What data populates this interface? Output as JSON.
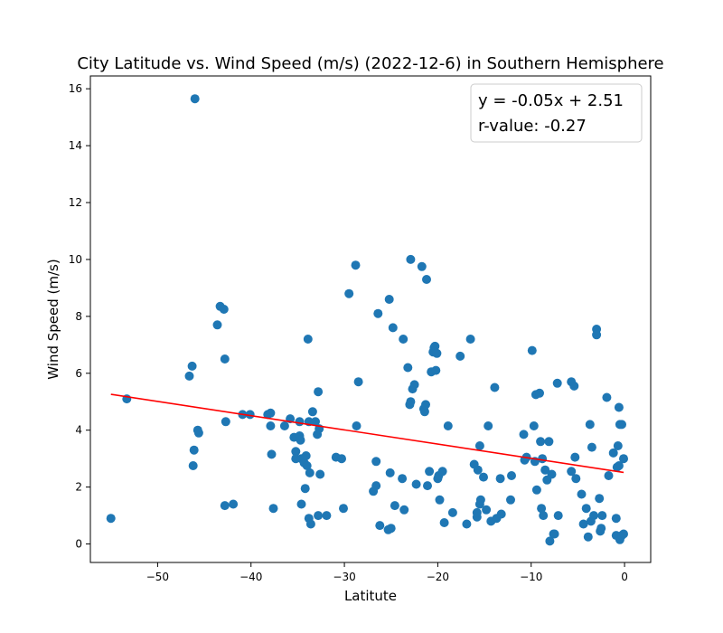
{
  "chart_data": {
    "type": "scatter",
    "title": "City Latitude vs. Wind Speed (m/s) (2022-12-6) in Southern Hemisphere",
    "xlabel": "Latitute",
    "ylabel": "Wind Speed (m/s)",
    "xlim": [
      -57.2,
      2.8
    ],
    "ylim": [
      -0.65,
      16.45
    ],
    "xticks": [
      -50,
      -40,
      -30,
      -20,
      -10,
      0
    ],
    "yticks": [
      0,
      2,
      4,
      6,
      8,
      10,
      12,
      14,
      16
    ],
    "grid": false,
    "point_color": "#1f77b4",
    "regression": {
      "slope": -0.05,
      "intercept": 2.51,
      "x_range": [
        -55.0,
        -0.1
      ],
      "color": "#ff0000",
      "equation_text": "y = -0.05x + 2.51",
      "r_text": "r-value: -0.27"
    },
    "points": [
      [
        -55.0,
        0.9
      ],
      [
        -53.3,
        5.1
      ],
      [
        -46.0,
        15.65
      ],
      [
        -46.6,
        5.9
      ],
      [
        -46.3,
        6.25
      ],
      [
        -46.1,
        3.3
      ],
      [
        -46.2,
        2.75
      ],
      [
        -45.7,
        4.0
      ],
      [
        -45.6,
        3.9
      ],
      [
        -43.6,
        7.7
      ],
      [
        -43.3,
        8.35
      ],
      [
        -42.9,
        8.25
      ],
      [
        -42.8,
        6.5
      ],
      [
        -42.7,
        4.3
      ],
      [
        -42.8,
        1.35
      ],
      [
        -41.9,
        1.4
      ],
      [
        -40.9,
        4.55
      ],
      [
        -40.1,
        4.55
      ],
      [
        -38.2,
        4.55
      ],
      [
        -37.9,
        4.6
      ],
      [
        -37.9,
        4.15
      ],
      [
        -37.8,
        3.15
      ],
      [
        -37.6,
        1.25
      ],
      [
        -36.4,
        4.15
      ],
      [
        -35.8,
        4.4
      ],
      [
        -35.4,
        3.75
      ],
      [
        -35.2,
        3.25
      ],
      [
        -35.2,
        3.0
      ],
      [
        -34.8,
        4.3
      ],
      [
        -34.8,
        3.8
      ],
      [
        -34.7,
        3.65
      ],
      [
        -34.6,
        3.0
      ],
      [
        -34.6,
        1.4
      ],
      [
        -34.3,
        2.85
      ],
      [
        -34.2,
        1.95
      ],
      [
        -34.1,
        3.1
      ],
      [
        -34.0,
        2.75
      ],
      [
        -33.9,
        7.2
      ],
      [
        -33.8,
        4.3
      ],
      [
        -33.7,
        2.5
      ],
      [
        -33.8,
        0.9
      ],
      [
        -33.6,
        0.7
      ],
      [
        -33.4,
        4.65
      ],
      [
        -33.1,
        4.3
      ],
      [
        -32.9,
        3.85
      ],
      [
        -32.8,
        5.35
      ],
      [
        -32.6,
        2.45
      ],
      [
        -32.8,
        1.0
      ],
      [
        -32.7,
        4.05
      ],
      [
        -31.9,
        1.0
      ],
      [
        -30.9,
        3.05
      ],
      [
        -30.3,
        3.0
      ],
      [
        -30.1,
        1.25
      ],
      [
        -29.5,
        8.8
      ],
      [
        -28.8,
        9.8
      ],
      [
        -28.7,
        4.15
      ],
      [
        -28.5,
        5.7
      ],
      [
        -26.9,
        1.85
      ],
      [
        -26.6,
        2.05
      ],
      [
        -26.6,
        2.9
      ],
      [
        -26.4,
        8.1
      ],
      [
        -26.2,
        0.65
      ],
      [
        -25.3,
        0.5
      ],
      [
        -25.0,
        0.55
      ],
      [
        -25.2,
        8.6
      ],
      [
        -25.1,
        2.5
      ],
      [
        -24.8,
        7.6
      ],
      [
        -24.6,
        1.35
      ],
      [
        -23.8,
        2.3
      ],
      [
        -23.7,
        7.2
      ],
      [
        -23.6,
        1.2
      ],
      [
        -23.2,
        6.2
      ],
      [
        -23.0,
        4.9
      ],
      [
        -22.9,
        5.0
      ],
      [
        -22.9,
        10.0
      ],
      [
        -22.7,
        5.45
      ],
      [
        -22.5,
        5.6
      ],
      [
        -22.3,
        2.1
      ],
      [
        -21.7,
        9.75
      ],
      [
        -21.5,
        4.75
      ],
      [
        -21.4,
        4.65
      ],
      [
        -21.3,
        4.9
      ],
      [
        -21.2,
        9.3
      ],
      [
        -21.1,
        2.05
      ],
      [
        -20.9,
        2.55
      ],
      [
        -20.7,
        6.05
      ],
      [
        -20.5,
        6.75
      ],
      [
        -20.4,
        6.9
      ],
      [
        -20.3,
        6.95
      ],
      [
        -20.2,
        6.1
      ],
      [
        -20.1,
        6.7
      ],
      [
        -20.0,
        2.3
      ],
      [
        -19.9,
        2.4
      ],
      [
        -19.8,
        1.55
      ],
      [
        -19.5,
        2.55
      ],
      [
        -19.3,
        0.75
      ],
      [
        -18.9,
        4.15
      ],
      [
        -18.4,
        1.1
      ],
      [
        -17.6,
        6.6
      ],
      [
        -16.9,
        0.7
      ],
      [
        -16.5,
        7.2
      ],
      [
        -16.1,
        2.8
      ],
      [
        -15.8,
        0.95
      ],
      [
        -15.8,
        1.1
      ],
      [
        -15.7,
        2.6
      ],
      [
        -15.5,
        3.45
      ],
      [
        -15.5,
        1.4
      ],
      [
        -15.4,
        1.55
      ],
      [
        -15.1,
        2.35
      ],
      [
        -14.8,
        1.2
      ],
      [
        -14.6,
        4.15
      ],
      [
        -14.3,
        0.8
      ],
      [
        -13.9,
        5.5
      ],
      [
        -13.7,
        0.9
      ],
      [
        -13.3,
        2.3
      ],
      [
        -13.2,
        1.05
      ],
      [
        -12.2,
        1.55
      ],
      [
        -12.1,
        2.4
      ],
      [
        -10.8,
        3.85
      ],
      [
        -10.7,
        2.95
      ],
      [
        -10.5,
        3.05
      ],
      [
        -9.9,
        6.8
      ],
      [
        -9.7,
        4.15
      ],
      [
        -9.6,
        2.9
      ],
      [
        -9.5,
        5.25
      ],
      [
        -9.4,
        1.9
      ],
      [
        -9.1,
        5.3
      ],
      [
        -9.0,
        3.6
      ],
      [
        -8.9,
        1.25
      ],
      [
        -8.8,
        3.0
      ],
      [
        -8.7,
        1.0
      ],
      [
        -8.5,
        2.6
      ],
      [
        -8.3,
        2.25
      ],
      [
        -8.1,
        3.6
      ],
      [
        -8.0,
        0.1
      ],
      [
        -7.8,
        2.45
      ],
      [
        -7.6,
        0.35
      ],
      [
        -7.5,
        0.35
      ],
      [
        -7.2,
        5.65
      ],
      [
        -7.1,
        1.0
      ],
      [
        -5.7,
        5.7
      ],
      [
        -5.7,
        2.55
      ],
      [
        -5.4,
        5.55
      ],
      [
        -5.3,
        3.05
      ],
      [
        -5.2,
        2.3
      ],
      [
        -4.6,
        1.75
      ],
      [
        -4.4,
        0.7
      ],
      [
        -4.1,
        1.25
      ],
      [
        -3.9,
        0.25
      ],
      [
        -3.7,
        4.2
      ],
      [
        -3.6,
        0.8
      ],
      [
        -3.5,
        3.4
      ],
      [
        -3.3,
        1.0
      ],
      [
        -3.0,
        7.55
      ],
      [
        -3.0,
        7.35
      ],
      [
        -2.7,
        1.6
      ],
      [
        -2.6,
        0.45
      ],
      [
        -2.5,
        0.55
      ],
      [
        -2.4,
        1.0
      ],
      [
        -1.9,
        5.15
      ],
      [
        -1.7,
        2.4
      ],
      [
        -1.2,
        3.2
      ],
      [
        -0.9,
        0.9
      ],
      [
        -0.9,
        0.3
      ],
      [
        -0.8,
        2.7
      ],
      [
        -0.7,
        3.45
      ],
      [
        -0.6,
        2.75
      ],
      [
        -0.6,
        4.8
      ],
      [
        -0.5,
        4.2
      ],
      [
        -0.5,
        0.15
      ],
      [
        -0.3,
        4.2
      ],
      [
        -0.3,
        0.3
      ],
      [
        -0.1,
        3.0
      ],
      [
        -0.1,
        0.35
      ]
    ]
  }
}
